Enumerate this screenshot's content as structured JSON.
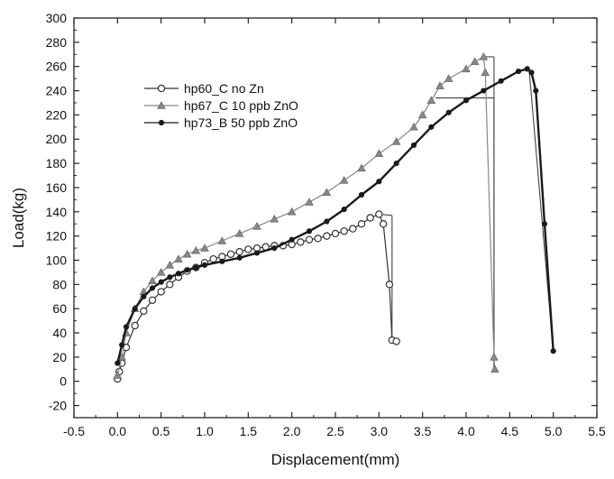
{
  "chart_data": {
    "type": "line",
    "title": "",
    "xlabel": "Displacement(mm)",
    "ylabel": "Load(kg)",
    "xlim": [
      -0.5,
      5.5
    ],
    "ylim": [
      -30,
      300
    ],
    "xticks": [
      "-0.5",
      "0.0",
      "0.5",
      "1.0",
      "1.5",
      "2.0",
      "2.5",
      "3.0",
      "3.5",
      "4.0",
      "4.5",
      "5.0",
      "5.5"
    ],
    "yticks": [
      "-20",
      "0",
      "20",
      "40",
      "60",
      "80",
      "100",
      "120",
      "140",
      "160",
      "180",
      "200",
      "220",
      "240",
      "260",
      "280",
      "300"
    ],
    "grid": false,
    "legend_position": "upper-left",
    "series": [
      {
        "name": "hp60_C no Zn",
        "marker": "circle",
        "color": "#333333",
        "x": [
          0.0,
          0.02,
          0.05,
          0.1,
          0.2,
          0.3,
          0.4,
          0.5,
          0.6,
          0.7,
          0.8,
          0.9,
          1.0,
          1.1,
          1.2,
          1.3,
          1.4,
          1.5,
          1.6,
          1.7,
          1.8,
          1.9,
          2.0,
          2.1,
          2.2,
          2.3,
          2.4,
          2.5,
          2.6,
          2.7,
          2.8,
          2.9,
          3.0,
          3.05,
          3.12,
          3.15,
          3.2
        ],
        "y": [
          2,
          8,
          15,
          28,
          46,
          58,
          67,
          74,
          80,
          86,
          91,
          94,
          98,
          101,
          103,
          105,
          107,
          109,
          110,
          111,
          112,
          112,
          113,
          115,
          117,
          118,
          120,
          122,
          124,
          126,
          130,
          135,
          138,
          130,
          80,
          34,
          33
        ]
      },
      {
        "name": "hp67_C 10 ppb ZnO",
        "marker": "triangle",
        "color": "#888888",
        "x": [
          0.0,
          0.05,
          0.1,
          0.2,
          0.3,
          0.4,
          0.5,
          0.6,
          0.7,
          0.8,
          0.9,
          1.0,
          1.2,
          1.4,
          1.6,
          1.8,
          2.0,
          2.2,
          2.4,
          2.6,
          2.8,
          3.0,
          3.2,
          3.4,
          3.5,
          3.6,
          3.7,
          3.8,
          4.0,
          4.1,
          4.2,
          4.22,
          4.32,
          4.33
        ],
        "y": [
          5,
          20,
          40,
          60,
          74,
          83,
          90,
          96,
          101,
          105,
          108,
          110,
          116,
          122,
          128,
          134,
          140,
          148,
          156,
          166,
          176,
          188,
          198,
          210,
          220,
          232,
          244,
          250,
          258,
          264,
          268,
          255,
          20,
          10
        ]
      },
      {
        "name": "hp73_B 50 ppb ZnO",
        "marker": "filled-circle",
        "color": "#1a1a1a",
        "x": [
          0.0,
          0.05,
          0.1,
          0.2,
          0.3,
          0.4,
          0.5,
          0.6,
          0.7,
          0.8,
          0.9,
          1.0,
          1.2,
          1.4,
          1.6,
          1.8,
          2.0,
          2.2,
          2.4,
          2.6,
          2.8,
          3.0,
          3.2,
          3.4,
          3.6,
          3.8,
          4.0,
          4.2,
          4.4,
          4.6,
          4.7,
          4.75,
          4.8,
          4.9,
          5.0
        ],
        "y": [
          15,
          30,
          45,
          60,
          70,
          77,
          82,
          86,
          89,
          92,
          94,
          96,
          99,
          102,
          106,
          110,
          117,
          124,
          132,
          142,
          154,
          165,
          180,
          195,
          210,
          222,
          232,
          240,
          248,
          256,
          258,
          255,
          240,
          130,
          25
        ]
      }
    ],
    "annotations": [
      {
        "x1": 3.0,
        "y1": 138,
        "x2": 3.15,
        "y2": 137
      },
      {
        "x1": 3.15,
        "y1": 137,
        "x2": 3.15,
        "y2": 33
      },
      {
        "x1": 4.2,
        "y1": 268,
        "x2": 4.32,
        "y2": 268
      },
      {
        "x1": 4.32,
        "y1": 268,
        "x2": 4.32,
        "y2": 8
      },
      {
        "x1": 3.65,
        "y1": 234,
        "x2": 4.32,
        "y2": 234
      },
      {
        "x1": 4.32,
        "y1": 234,
        "x2": 4.32,
        "y2": 8
      },
      {
        "x1": 4.72,
        "y1": 260,
        "x2": 5.0,
        "y2": 24
      }
    ]
  }
}
